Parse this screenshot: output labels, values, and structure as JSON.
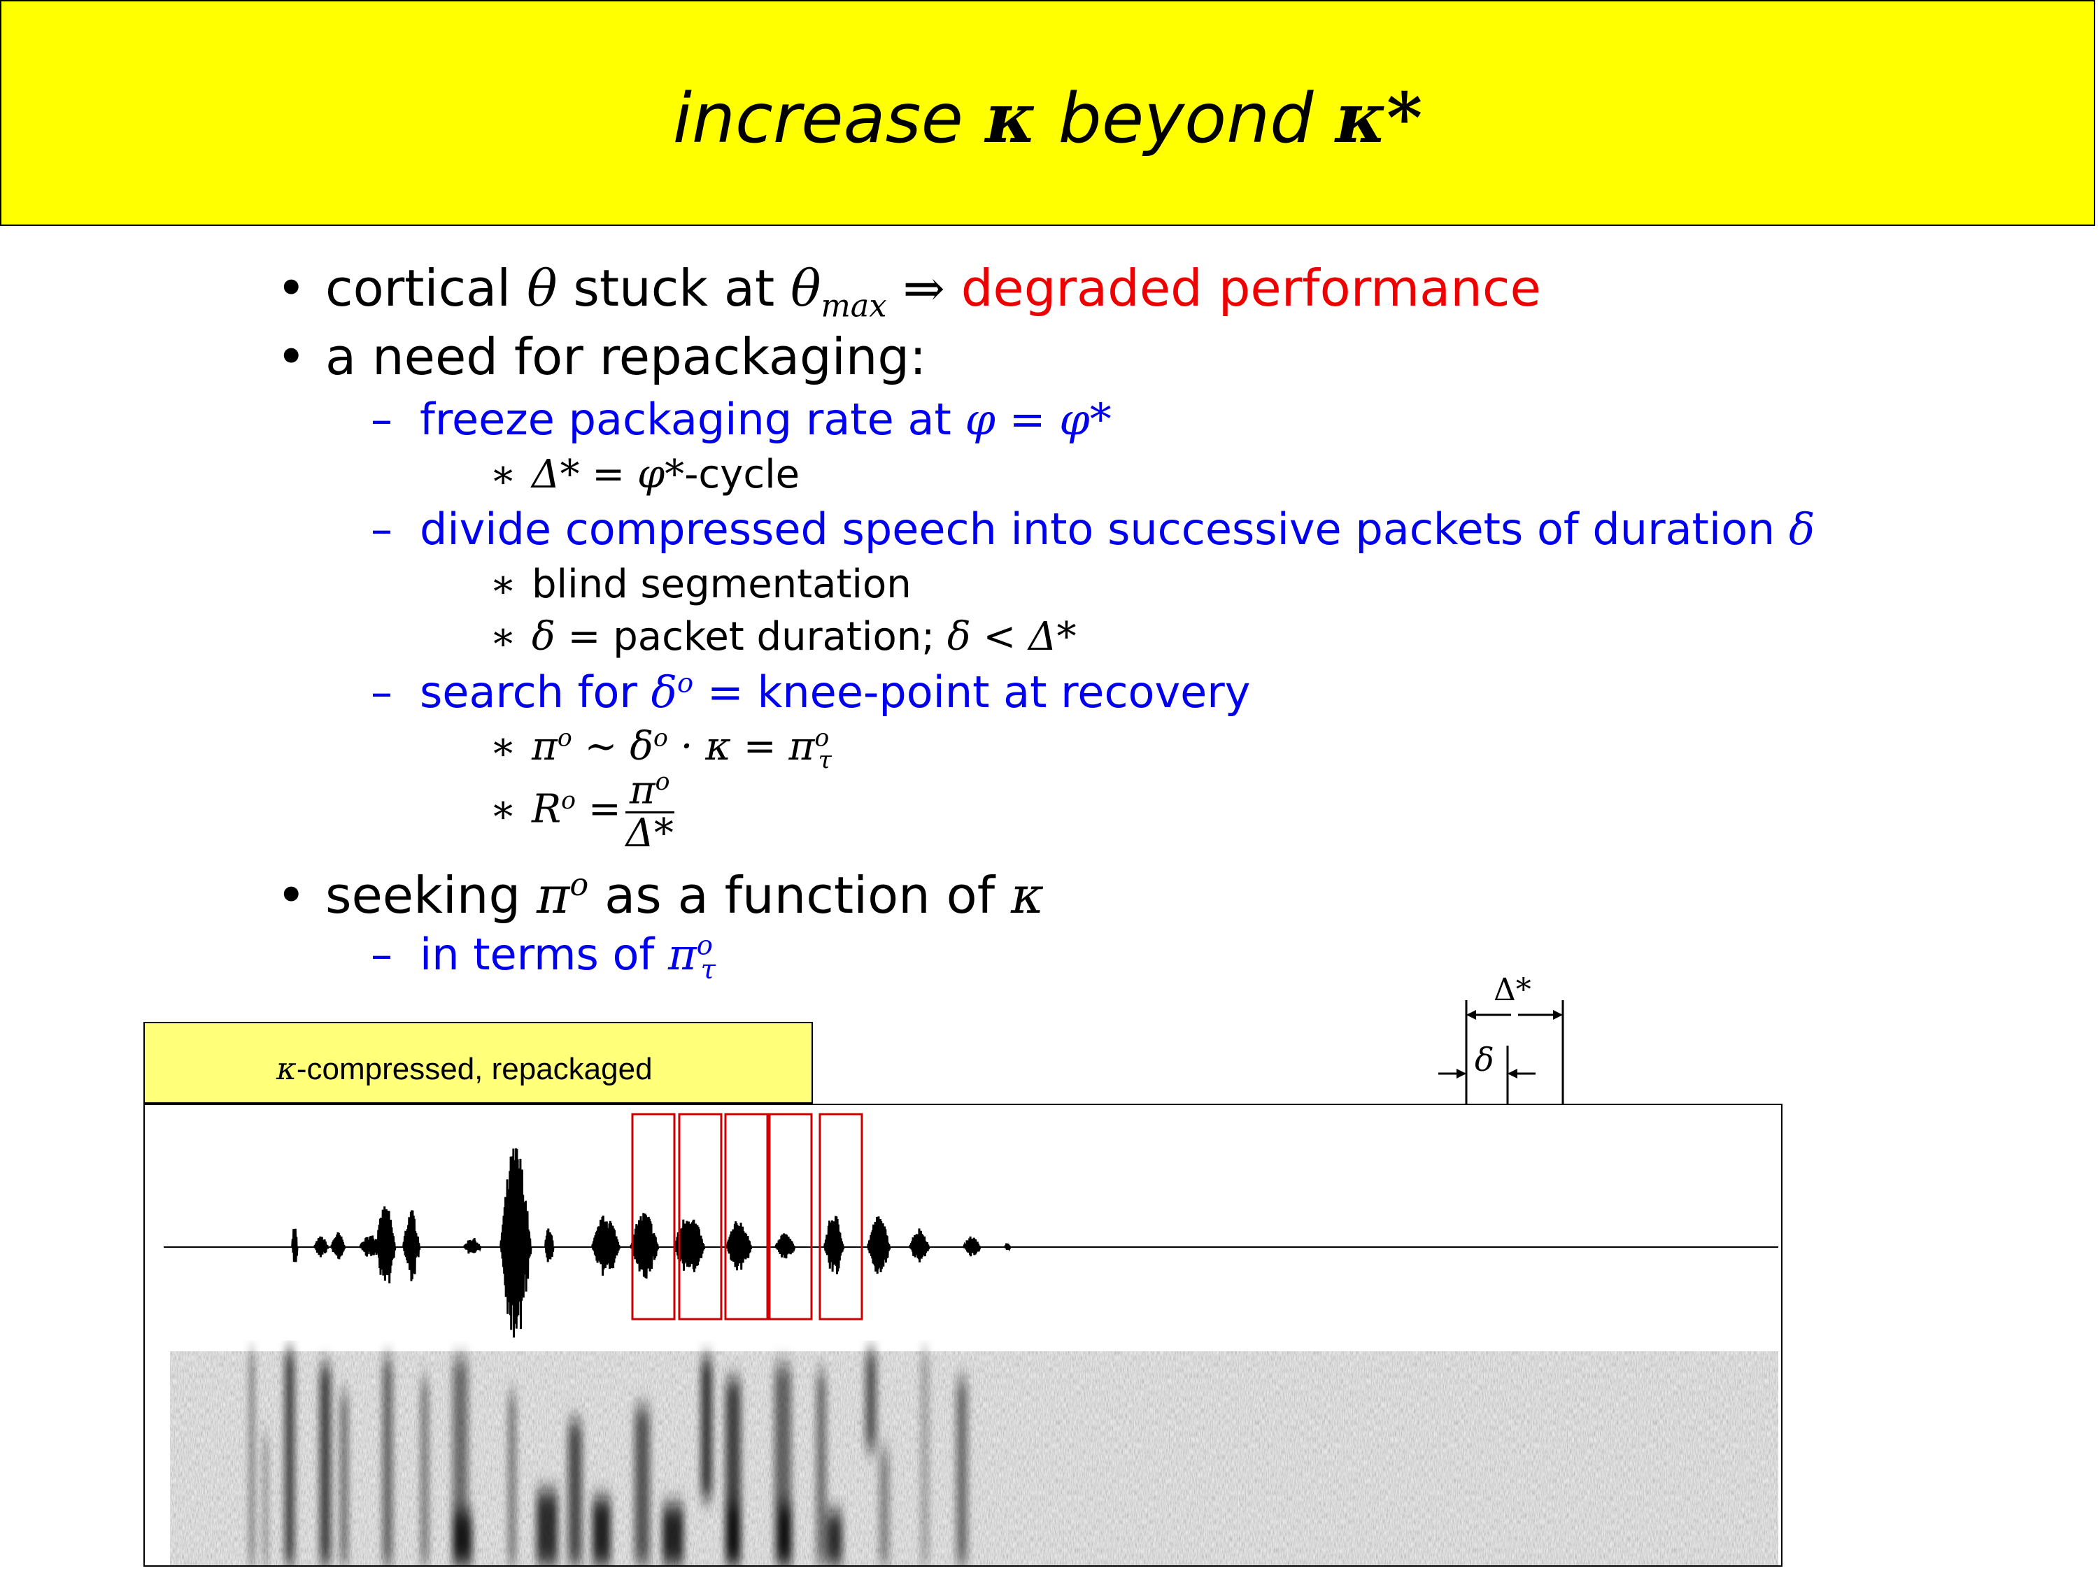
{
  "title": {
    "prefix": "increase",
    "kappa": "κ",
    "middle": " beyond ",
    "kappa_star": "κ*"
  },
  "bullets": {
    "b1": {
      "text": "cortical",
      "theta": "θ",
      "stuck": "stuck at",
      "theta_max": "θ",
      "max_sub": "max",
      "implies": "⇒",
      "degraded": "degraded performance"
    },
    "b2": {
      "text": "a need for repackaging:"
    },
    "b2_1": {
      "text": "freeze packaging rate at",
      "math": "φ = φ*"
    },
    "b2_1_1": {
      "math": "Δ* = φ*",
      "suffix": "-cycle"
    },
    "b2_2": {
      "text": "divide compressed speech into successive packets of duration",
      "math": "δ"
    },
    "b2_2_1": {
      "text": "blind segmentation"
    },
    "b2_2_2": {
      "math_a": "δ =",
      "text": "packet duration;",
      "math_b": "δ < Δ*"
    },
    "b2_3": {
      "text_a": "search for",
      "math": "δ",
      "sup": "o",
      "text_b": "= knee-point at recovery"
    },
    "b2_3_1": {
      "pi": "π",
      "sup": "o",
      "mid": " ~ δ",
      "sup2": "o",
      "mid2": " · κ = π",
      "sup3": "o",
      "sub3": "τ"
    },
    "b2_3_2": {
      "r": "R",
      "sup": "o",
      "eq": " =",
      "num": "π",
      "num_sup": "o",
      "den": "Δ*"
    },
    "b3": {
      "text_a": "seeking",
      "pi": "π",
      "sup": "o",
      "text_b": "as a function of",
      "kappa": "κ"
    },
    "b3_1": {
      "text": "in terms of",
      "pi": "π",
      "sup": "o",
      "sub": "τ"
    }
  },
  "star_glyph": "∗",
  "bullet_glyph": "•",
  "dash_glyph": "–",
  "figure": {
    "caption_kappa": "κ",
    "caption_text": "-compressed, repackaged",
    "dim_outer_label": "Δ*",
    "dim_inner_label": "δ",
    "packet_box_color": "#cc0000",
    "packet_count": 5
  }
}
